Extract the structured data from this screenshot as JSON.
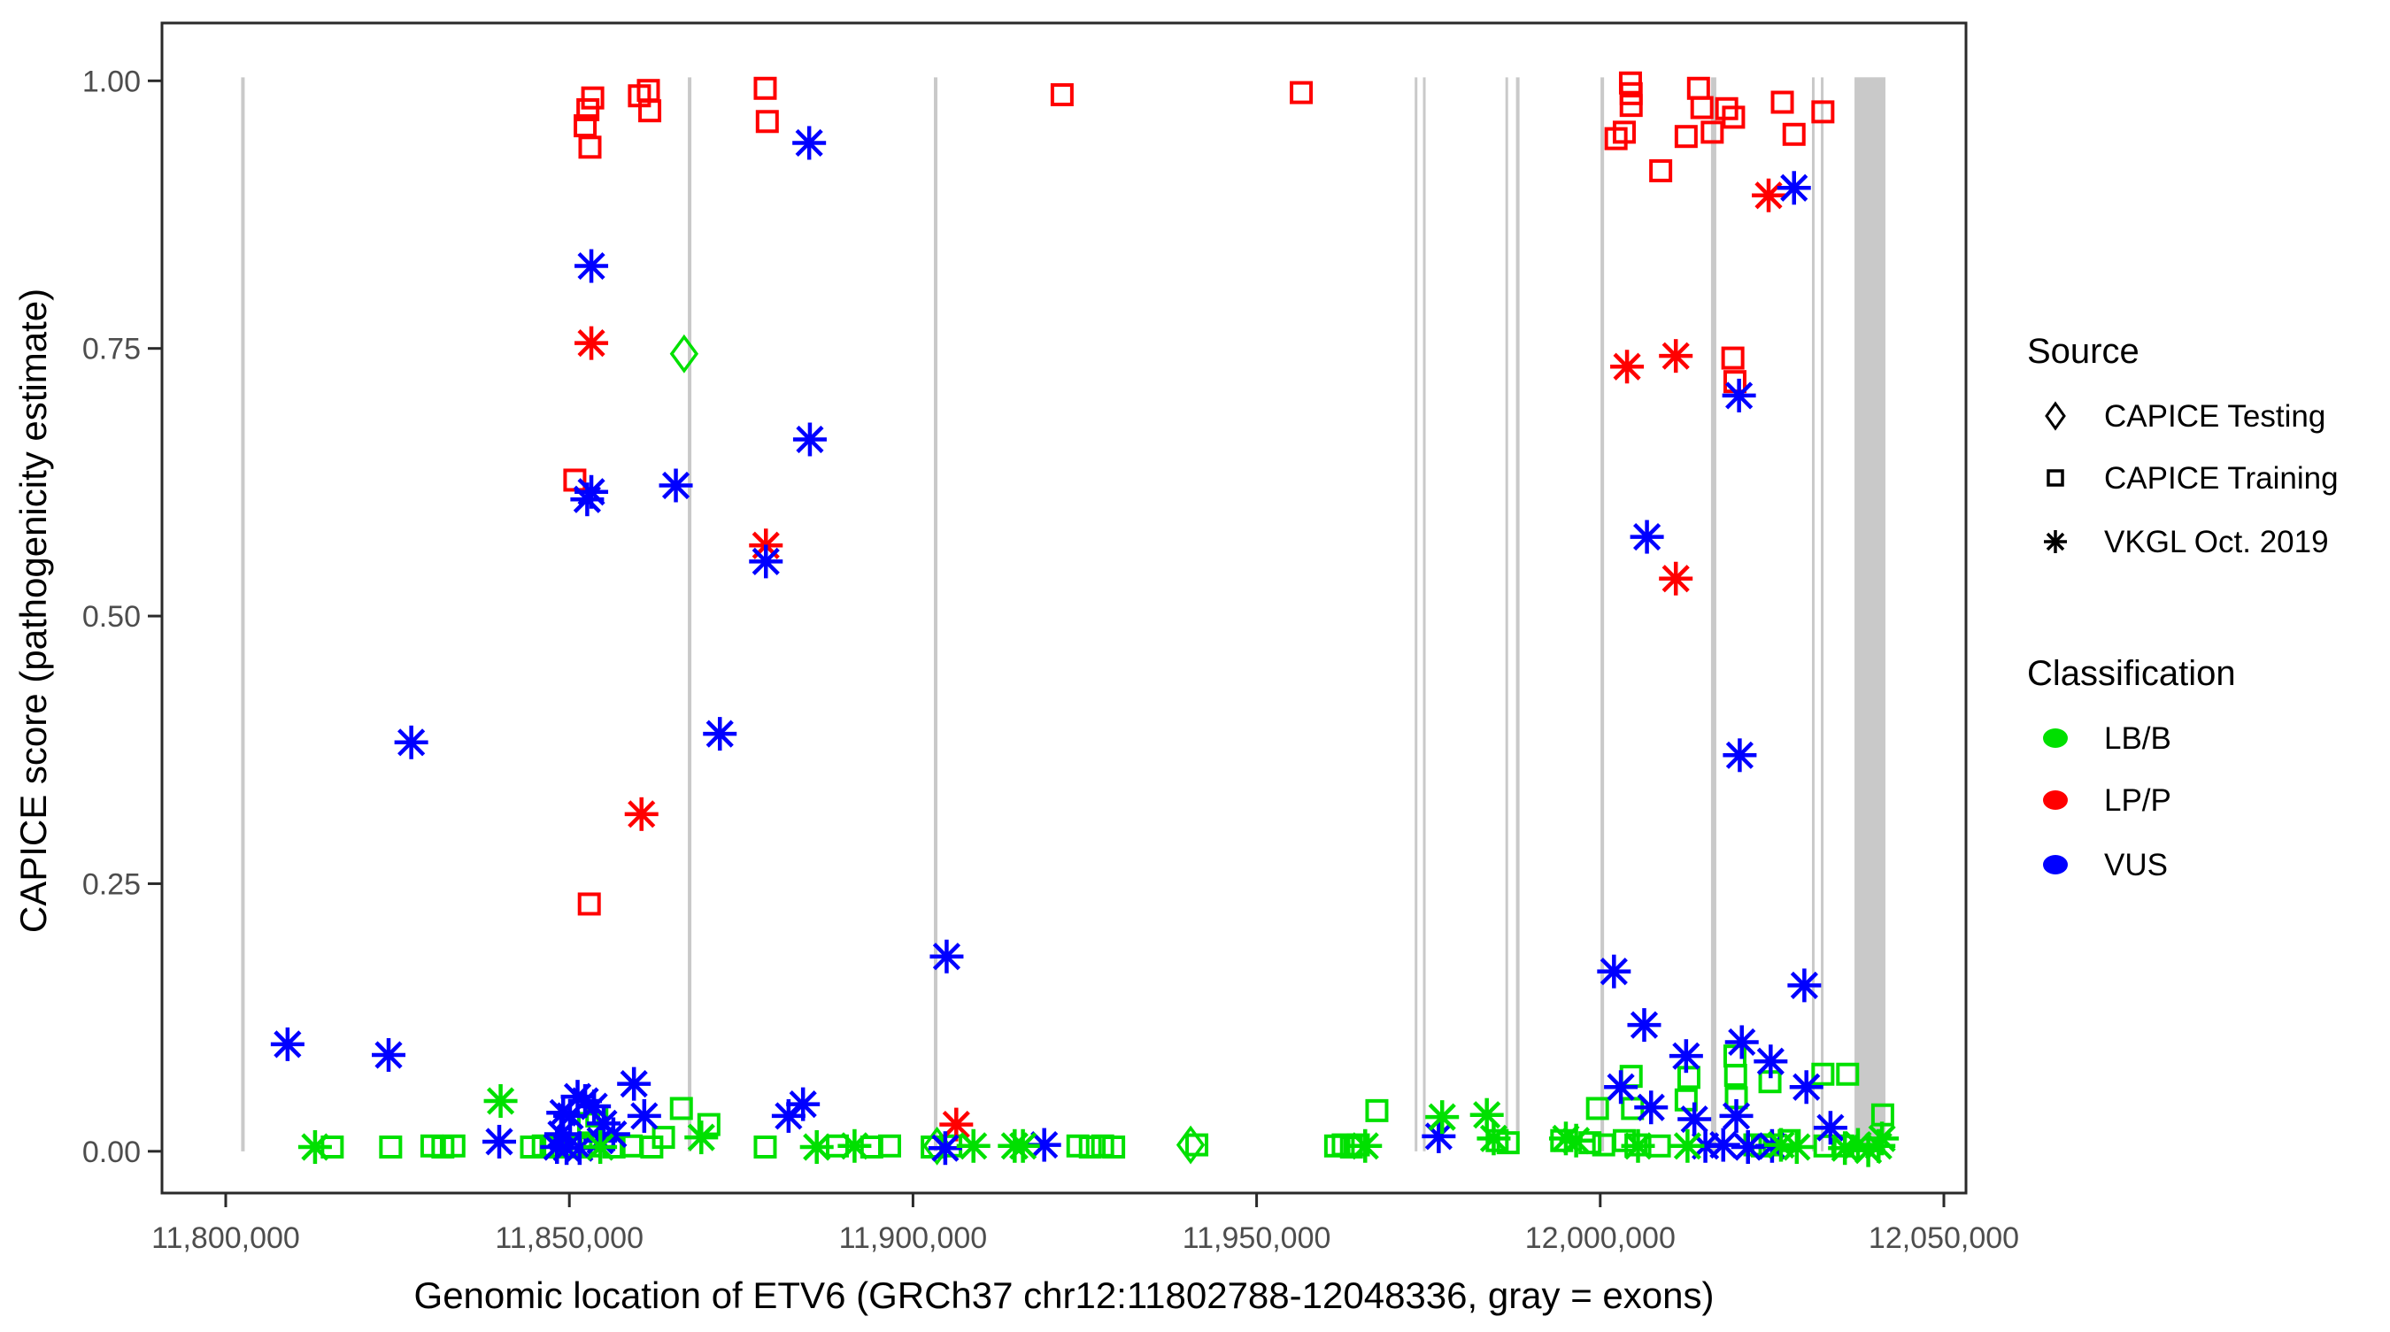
{
  "chart_data": {
    "type": "scatter",
    "title": "",
    "xlabel": "Genomic location of ETV6 (GRCh37 chr12:11802788-12048336, gray = exons)",
    "ylabel": "CAPICE score (pathogenicity estimate)",
    "xlim": [
      11790726,
      12053221
    ],
    "ylim": [
      -0.039,
      1.054
    ],
    "grid": false,
    "legend_position": "right",
    "x_ticks": [
      {
        "value": 11800000,
        "label": "11,800,000"
      },
      {
        "value": 11850000,
        "label": "11,850,000"
      },
      {
        "value": 11900000,
        "label": "11,900,000"
      },
      {
        "value": 11950000,
        "label": "11,950,000"
      },
      {
        "value": 12000000,
        "label": "12,000,000"
      },
      {
        "value": 12050000,
        "label": "12,050,000"
      }
    ],
    "y_ticks": [
      {
        "value": 0.0,
        "label": "0.00"
      },
      {
        "value": 0.25,
        "label": "0.25"
      },
      {
        "value": 0.5,
        "label": "0.50"
      },
      {
        "value": 0.75,
        "label": "0.75"
      },
      {
        "value": 1.0,
        "label": "1.00"
      }
    ],
    "exon_color": "#c9c9c9",
    "exons": {
      "lines": [
        {
          "pos": 11802500,
          "w": 4
        },
        {
          "pos": 11867500,
          "w": 4
        },
        {
          "pos": 11903300,
          "w": 4
        },
        {
          "pos": 11973200,
          "w": 3
        },
        {
          "pos": 11974400,
          "w": 3
        },
        {
          "pos": 11986400,
          "w": 3
        },
        {
          "pos": 11988000,
          "w": 4
        },
        {
          "pos": 12000300,
          "w": 4
        },
        {
          "pos": 12016500,
          "w": 6
        },
        {
          "pos": 12031000,
          "w": 3
        },
        {
          "pos": 12032300,
          "w": 3
        }
      ],
      "band": {
        "start": 12037000,
        "end": 12041500
      }
    },
    "classification_colors": {
      "LB/B": "#00e000",
      "LP/P": "#ff0000",
      "VUS": "#0000ff"
    },
    "series": [
      {
        "name": "CAPICE Testing",
        "shape": "diamond",
        "points": [
          [
            11866700,
            0.745,
            "LB/B"
          ],
          [
            11903500,
            0.005,
            "LB/B"
          ],
          [
            11940400,
            0.006,
            "LB/B"
          ]
        ]
      },
      {
        "name": "CAPICE Training",
        "shape": "square",
        "points": [
          [
            11852300,
            0.958,
            "LP/P"
          ],
          [
            11852700,
            0.973,
            "LP/P"
          ],
          [
            11853000,
            0.938,
            "LP/P"
          ],
          [
            11853400,
            0.984,
            "LP/P"
          ],
          [
            11860200,
            0.986,
            "LP/P"
          ],
          [
            11861500,
            0.991,
            "LP/P"
          ],
          [
            11861700,
            0.972,
            "LP/P"
          ],
          [
            11878500,
            0.993,
            "LP/P"
          ],
          [
            11878800,
            0.962,
            "LP/P"
          ],
          [
            11921700,
            0.987,
            "LP/P"
          ],
          [
            11956500,
            0.989,
            "LP/P"
          ],
          [
            12002300,
            0.946,
            "LP/P"
          ],
          [
            12003500,
            0.952,
            "LP/P"
          ],
          [
            12004400,
            0.998,
            "LP/P"
          ],
          [
            12004500,
            0.988,
            "LP/P"
          ],
          [
            12004500,
            0.977,
            "LP/P"
          ],
          [
            12008800,
            0.916,
            "LP/P"
          ],
          [
            12012500,
            0.948,
            "LP/P"
          ],
          [
            12014300,
            0.993,
            "LP/P"
          ],
          [
            12014800,
            0.975,
            "LP/P"
          ],
          [
            12016300,
            0.952,
            "LP/P"
          ],
          [
            12018400,
            0.974,
            "LP/P"
          ],
          [
            12019400,
            0.966,
            "LP/P"
          ],
          [
            12026500,
            0.98,
            "LP/P"
          ],
          [
            12028200,
            0.95,
            "LP/P"
          ],
          [
            12032400,
            0.971,
            "LP/P"
          ],
          [
            11850800,
            0.627,
            "LP/P"
          ],
          [
            11852900,
            0.231,
            "LP/P"
          ],
          [
            12019300,
            0.741,
            "LP/P"
          ],
          [
            12019600,
            0.719,
            "LP/P"
          ],
          [
            11815500,
            0.004,
            "LB/B"
          ],
          [
            11824000,
            0.004,
            "LB/B"
          ],
          [
            11830000,
            0.005,
            "LB/B"
          ],
          [
            11831600,
            0.004,
            "LB/B"
          ],
          [
            11833200,
            0.005,
            "LB/B"
          ],
          [
            11844500,
            0.004,
            "LB/B"
          ],
          [
            11846200,
            0.005,
            "LB/B"
          ],
          [
            11847800,
            0.004,
            "LB/B"
          ],
          [
            11850000,
            0.005,
            "LB/B"
          ],
          [
            11851700,
            0.004,
            "LB/B"
          ],
          [
            11853100,
            0.005,
            "LB/B"
          ],
          [
            11856500,
            0.004,
            "LB/B"
          ],
          [
            11859000,
            0.005,
            "LB/B"
          ],
          [
            11862000,
            0.004,
            "LB/B"
          ],
          [
            11863700,
            0.013,
            "LB/B"
          ],
          [
            11878500,
            0.004,
            "LB/B"
          ],
          [
            11889000,
            0.005,
            "LB/B"
          ],
          [
            11894000,
            0.004,
            "LB/B"
          ],
          [
            11896600,
            0.005,
            "LB/B"
          ],
          [
            11902800,
            0.004,
            "LB/B"
          ],
          [
            11905500,
            0.005,
            "LB/B"
          ],
          [
            11924000,
            0.005,
            "LB/B"
          ],
          [
            11925800,
            0.004,
            "LB/B"
          ],
          [
            11927600,
            0.005,
            "LB/B"
          ],
          [
            11929200,
            0.004,
            "LB/B"
          ],
          [
            11941300,
            0.006,
            "LB/B"
          ],
          [
            11961500,
            0.005,
            "LB/B"
          ],
          [
            11962600,
            0.006,
            "LB/B"
          ],
          [
            11963800,
            0.004,
            "LB/B"
          ],
          [
            11964800,
            0.006,
            "LB/B"
          ],
          [
            11985000,
            0.01,
            "LB/B"
          ],
          [
            11986600,
            0.008,
            "LB/B"
          ],
          [
            11994400,
            0.01,
            "LB/B"
          ],
          [
            11998500,
            0.008,
            "LB/B"
          ],
          [
            12000500,
            0.006,
            "LB/B"
          ],
          [
            12003500,
            0.01,
            "LB/B"
          ],
          [
            12005200,
            0.006,
            "LB/B"
          ],
          [
            12008600,
            0.005,
            "LB/B"
          ],
          [
            12022500,
            0.006,
            "LB/B"
          ],
          [
            12023600,
            0.005,
            "LB/B"
          ],
          [
            12024700,
            0.006,
            "LB/B"
          ],
          [
            12032700,
            0.005,
            "LB/B"
          ],
          [
            12035300,
            0.005,
            "LB/B"
          ],
          [
            11852800,
            0.026,
            "LB/B"
          ],
          [
            11854000,
            0.033,
            "LB/B"
          ],
          [
            11866300,
            0.04,
            "LB/B"
          ],
          [
            11870300,
            0.025,
            "LB/B"
          ],
          [
            11967500,
            0.038,
            "LB/B"
          ],
          [
            11999600,
            0.04,
            "LB/B"
          ],
          [
            12004500,
            0.07,
            "LB/B"
          ],
          [
            12004700,
            0.04,
            "LB/B"
          ],
          [
            12012900,
            0.069,
            "LB/B"
          ],
          [
            12012500,
            0.048,
            "LB/B"
          ],
          [
            12019600,
            0.089,
            "LB/B"
          ],
          [
            12019700,
            0.071,
            "LB/B"
          ],
          [
            12019800,
            0.05,
            "LB/B"
          ],
          [
            12024700,
            0.065,
            "LB/B"
          ],
          [
            12027500,
            0.01,
            "LB/B"
          ],
          [
            12032400,
            0.072,
            "LB/B"
          ],
          [
            12036000,
            0.072,
            "LB/B"
          ],
          [
            12041100,
            0.034,
            "LB/B"
          ]
        ]
      },
      {
        "name": "VKGL Oct. 2019",
        "shape": "asterisk",
        "points": [
          [
            11853200,
            0.755,
            "LP/P"
          ],
          [
            11860500,
            0.315,
            "LP/P"
          ],
          [
            11878600,
            0.566,
            "LP/P"
          ],
          [
            11906300,
            0.025,
            "LP/P"
          ],
          [
            12003900,
            0.733,
            "LP/P"
          ],
          [
            12011000,
            0.743,
            "LP/P"
          ],
          [
            12011000,
            0.535,
            "LP/P"
          ],
          [
            12024500,
            0.893,
            "LP/P"
          ],
          [
            11809000,
            0.1,
            "VUS"
          ],
          [
            11823700,
            0.09,
            "VUS"
          ],
          [
            11827000,
            0.382,
            "VUS"
          ],
          [
            11871900,
            0.39,
            "VUS"
          ],
          [
            11839800,
            0.009,
            "VUS"
          ],
          [
            11848200,
            0.004,
            "VUS"
          ],
          [
            11848800,
            0.016,
            "VUS"
          ],
          [
            11849100,
            0.036,
            "VUS"
          ],
          [
            11849600,
            0.003,
            "VUS"
          ],
          [
            11850100,
            0.033,
            "VUS"
          ],
          [
            11851200,
            0.051,
            "VUS"
          ],
          [
            11851500,
            0.003,
            "VUS"
          ],
          [
            11852300,
            0.047,
            "VUS"
          ],
          [
            11853600,
            0.042,
            "VUS"
          ],
          [
            11854500,
            0.01,
            "VUS"
          ],
          [
            11855000,
            0.026,
            "VUS"
          ],
          [
            11856400,
            0.016,
            "VUS"
          ],
          [
            11859400,
            0.063,
            "VUS"
          ],
          [
            11860900,
            0.033,
            "VUS"
          ],
          [
            11852600,
            0.609,
            "VUS"
          ],
          [
            11853200,
            0.616,
            "VUS"
          ],
          [
            11853200,
            0.827,
            "VUS"
          ],
          [
            11865500,
            0.622,
            "VUS"
          ],
          [
            11878600,
            0.551,
            "VUS"
          ],
          [
            11884900,
            0.942,
            "VUS"
          ],
          [
            11885000,
            0.665,
            "VUS"
          ],
          [
            11881900,
            0.033,
            "VUS"
          ],
          [
            11884000,
            0.044,
            "VUS"
          ],
          [
            11904700,
            0.003,
            "VUS"
          ],
          [
            11904900,
            0.182,
            "VUS"
          ],
          [
            11919100,
            0.006,
            "VUS"
          ],
          [
            11976500,
            0.014,
            "VUS"
          ],
          [
            12002000,
            0.168,
            "VUS"
          ],
          [
            12003000,
            0.06,
            "VUS"
          ],
          [
            12006400,
            0.118,
            "VUS"
          ],
          [
            12006800,
            0.574,
            "VUS"
          ],
          [
            12007400,
            0.041,
            "VUS"
          ],
          [
            12012500,
            0.089,
            "VUS"
          ],
          [
            12013700,
            0.03,
            "VUS"
          ],
          [
            12015300,
            0.005,
            "VUS"
          ],
          [
            12017900,
            0.006,
            "VUS"
          ],
          [
            12019800,
            0.033,
            "VUS"
          ],
          [
            12020200,
            0.706,
            "VUS"
          ],
          [
            12020300,
            0.37,
            "VUS"
          ],
          [
            12020600,
            0.102,
            "VUS"
          ],
          [
            12021500,
            0.004,
            "VUS"
          ],
          [
            12024800,
            0.084,
            "VUS"
          ],
          [
            12025000,
            0.005,
            "VUS"
          ],
          [
            12028200,
            0.9,
            "VUS"
          ],
          [
            12029700,
            0.155,
            "VUS"
          ],
          [
            12030000,
            0.06,
            "VUS"
          ],
          [
            12033500,
            0.022,
            "VUS"
          ],
          [
            11813000,
            0.004,
            "LB/B"
          ],
          [
            11840000,
            0.047,
            "LB/B"
          ],
          [
            11854500,
            0.004,
            "LB/B"
          ],
          [
            11869200,
            0.013,
            "LB/B"
          ],
          [
            11886000,
            0.004,
            "LB/B"
          ],
          [
            11891500,
            0.005,
            "LB/B"
          ],
          [
            11908800,
            0.005,
            "LB/B"
          ],
          [
            11914800,
            0.005,
            "LB/B"
          ],
          [
            11916000,
            0.005,
            "LB/B"
          ],
          [
            11965800,
            0.005,
            "LB/B"
          ],
          [
            11977000,
            0.032,
            "LB/B"
          ],
          [
            11983500,
            0.034,
            "LB/B"
          ],
          [
            11984500,
            0.012,
            "LB/B"
          ],
          [
            11995000,
            0.012,
            "LB/B"
          ],
          [
            11996500,
            0.01,
            "LB/B"
          ],
          [
            12005500,
            0.005,
            "LB/B"
          ],
          [
            12012700,
            0.005,
            "LB/B"
          ],
          [
            12026300,
            0.006,
            "LB/B"
          ],
          [
            12028600,
            0.004,
            "LB/B"
          ],
          [
            12035600,
            0.003,
            "LB/B"
          ],
          [
            12037500,
            0.006,
            "LB/B"
          ],
          [
            12039000,
            0.001,
            "LB/B"
          ],
          [
            12040500,
            0.005,
            "LB/B"
          ],
          [
            12041000,
            0.012,
            "LB/B"
          ]
        ]
      }
    ],
    "legend": {
      "source": {
        "title": "Source",
        "items": [
          {
            "shape": "diamond",
            "label": "CAPICE Testing"
          },
          {
            "shape": "square",
            "label": "CAPICE Training"
          },
          {
            "shape": "asterisk",
            "label": "VKGL Oct. 2019"
          }
        ]
      },
      "classification": {
        "title": "Classification",
        "items": [
          {
            "label": "LB/B",
            "color": "#00e000"
          },
          {
            "label": "LP/P",
            "color": "#ff0000"
          },
          {
            "label": "VUS",
            "color": "#0000ff"
          }
        ]
      }
    },
    "panel_border_color": "#2a2a2a",
    "tick_color": "#2a2a2a"
  }
}
